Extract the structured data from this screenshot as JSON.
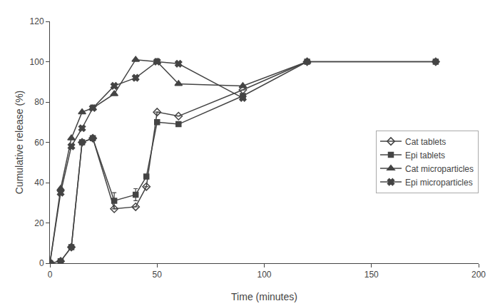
{
  "chart_data": {
    "type": "line",
    "xlabel": "Time (minutes)",
    "ylabel": "Cumulative release (%)",
    "xlim": [
      0,
      200
    ],
    "ylim": [
      0,
      120
    ],
    "xticks": [
      0,
      50,
      100,
      150,
      200
    ],
    "yticks": [
      0,
      20,
      40,
      60,
      80,
      100,
      120
    ],
    "grid": false,
    "legend": "right",
    "background_color": "#ffffff",
    "series": [
      {
        "name": "Cat tablets",
        "color": "#444444",
        "marker": "open_diamond",
        "x": [
          0,
          5,
          10,
          15,
          20,
          30,
          40,
          45,
          50,
          60,
          90,
          120,
          180
        ],
        "values": [
          0,
          1,
          8,
          60,
          62,
          27,
          28,
          38,
          75,
          73,
          86,
          100,
          100
        ],
        "yerr": [
          0,
          0,
          0,
          0,
          0,
          0,
          0,
          0,
          0,
          0,
          0,
          0,
          0
        ]
      },
      {
        "name": "Epi tablets",
        "color": "#444444",
        "marker": "square",
        "x": [
          0,
          5,
          10,
          15,
          20,
          30,
          40,
          45,
          50,
          60,
          90,
          120,
          180
        ],
        "values": [
          0,
          1,
          8,
          60,
          62,
          31,
          34,
          43,
          70,
          69,
          83,
          100,
          100
        ],
        "yerr": [
          0,
          0,
          0,
          0,
          0,
          4,
          3,
          0,
          0,
          0,
          0,
          0,
          0
        ]
      },
      {
        "name": "Cat microparticles",
        "color": "#444444",
        "marker": "triangle",
        "x": [
          0,
          5,
          10,
          15,
          20,
          30,
          40,
          50,
          60,
          90,
          120
        ],
        "values": [
          0,
          37,
          62,
          75,
          77,
          84,
          101,
          100,
          89,
          88,
          100
        ]
      },
      {
        "name": "Epi microparticles",
        "color": "#444444",
        "marker": "x",
        "x": [
          0,
          5,
          10,
          15,
          20,
          30,
          40,
          50,
          60,
          90
        ],
        "values": [
          0,
          35,
          58,
          67,
          77,
          88,
          92,
          100,
          99,
          82
        ]
      }
    ]
  }
}
